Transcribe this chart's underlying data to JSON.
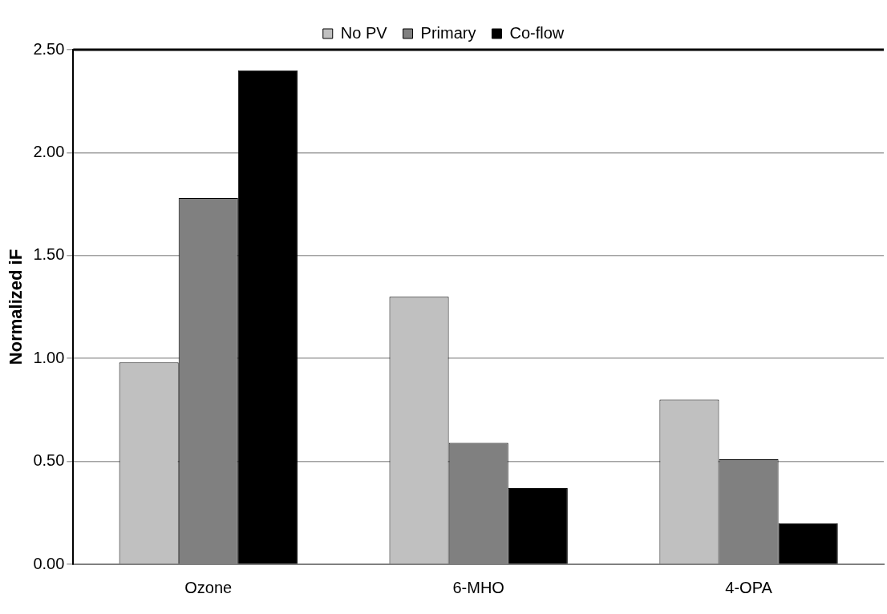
{
  "chart_data": {
    "type": "bar",
    "ylabel": "Normalized iF",
    "categories": [
      "Ozone",
      "6-MHO",
      "4-OPA"
    ],
    "series": [
      {
        "name": "No PV",
        "color": "#c0c0c0",
        "values": [
          0.98,
          1.3,
          0.8
        ]
      },
      {
        "name": "Primary",
        "color": "#808080",
        "values": [
          1.78,
          0.59,
          0.51
        ]
      },
      {
        "name": "Co-flow",
        "color": "#000000",
        "values": [
          2.4,
          0.37,
          0.2
        ]
      }
    ],
    "ylim": [
      0,
      2.5
    ],
    "yticks": [
      {
        "value": 0,
        "label": "0.00"
      },
      {
        "value": 0.5,
        "label": "0.50"
      },
      {
        "value": 1,
        "label": "1.00"
      },
      {
        "value": 1.5,
        "label": "1.50"
      },
      {
        "value": 2,
        "label": "2.00"
      },
      {
        "value": 2.5,
        "label": "2.50"
      }
    ],
    "grid": "y",
    "legend": "top"
  }
}
